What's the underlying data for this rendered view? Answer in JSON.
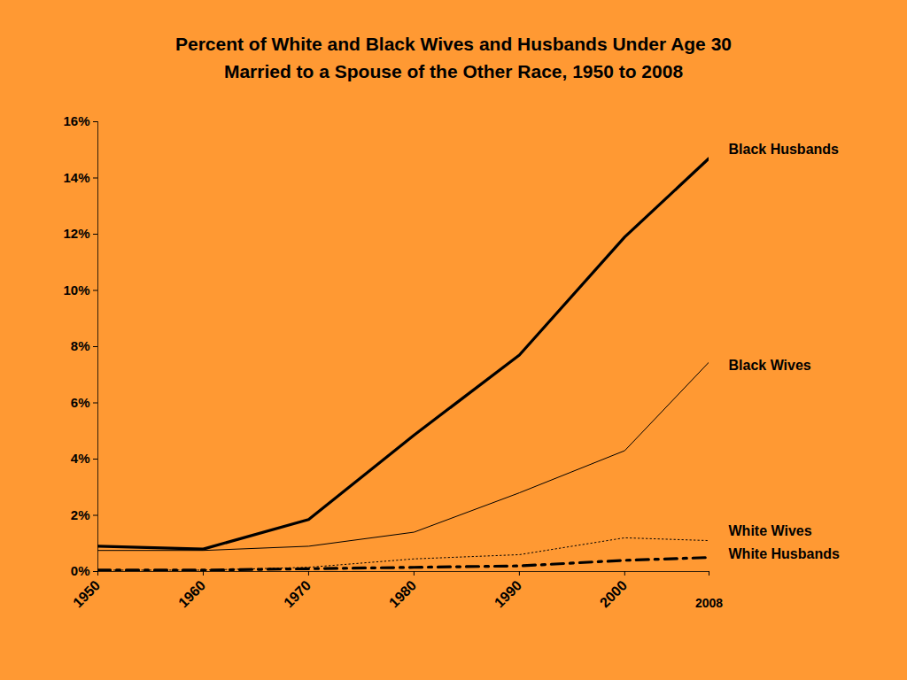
{
  "chart_data": {
    "type": "line",
    "title": "Percent of White and Black Wives and Husbands Under Age 30",
    "subtitle": "Married to a Spouse of the Other Race, 1950 to 2008",
    "x": [
      1950,
      1960,
      1970,
      1980,
      1990,
      2000,
      2008
    ],
    "xlim": [
      1950,
      2008
    ],
    "xticks": [
      1950,
      1960,
      1970,
      1980,
      1990,
      2000,
      2008
    ],
    "ylim": [
      0,
      16
    ],
    "yticks": [
      {
        "value": 0,
        "label": "0%"
      },
      {
        "value": 2,
        "label": "2%"
      },
      {
        "value": 4,
        "label": "4%"
      },
      {
        "value": 6,
        "label": "6%"
      },
      {
        "value": 8,
        "label": "8%"
      },
      {
        "value": 10,
        "label": "10%"
      },
      {
        "value": 12,
        "label": "12%"
      },
      {
        "value": 14,
        "label": "14%"
      },
      {
        "value": 16,
        "label": "16%"
      }
    ],
    "grid": false,
    "series": [
      {
        "name": "Black Husbands",
        "color": "#000000",
        "line_style": "solid",
        "values": [
          0.9,
          0.8,
          1.85,
          4.85,
          7.7,
          11.9,
          14.7
        ]
      },
      {
        "name": "Black Wives",
        "color": "#000000",
        "line_style": "solid",
        "values": [
          0.75,
          0.75,
          0.9,
          1.4,
          2.8,
          4.3,
          7.45
        ]
      },
      {
        "name": "White Wives",
        "color": "#000000",
        "line_style": "dotted",
        "values": [
          0.05,
          0.05,
          0.15,
          0.45,
          0.6,
          1.2,
          1.1
        ]
      },
      {
        "name": "White Husbands",
        "color": "#000000",
        "line_style": "dashdot",
        "values": [
          0.05,
          0.05,
          0.1,
          0.15,
          0.2,
          0.4,
          0.5
        ]
      }
    ]
  }
}
